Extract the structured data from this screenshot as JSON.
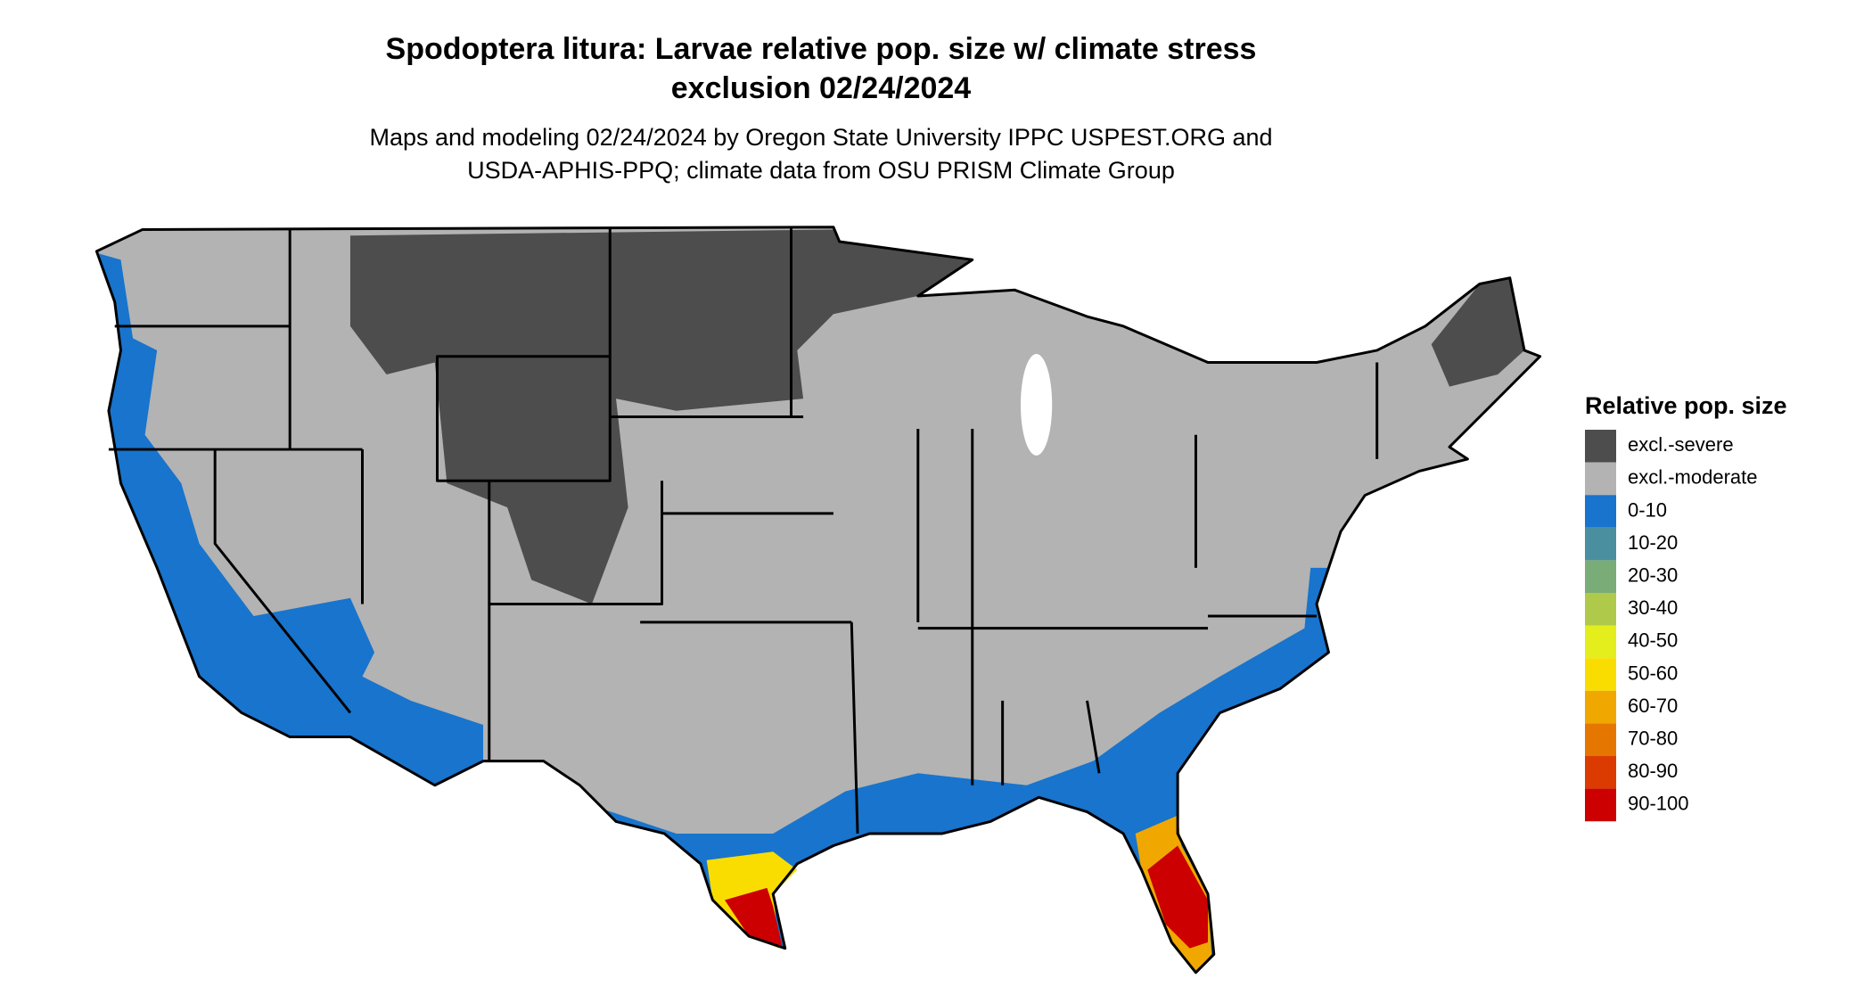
{
  "header": {
    "title_lines": [
      "Spodoptera litura: Larvae relative pop. size w/ climate stress",
      "exclusion 02/24/2024"
    ],
    "subtitle_lines": [
      "Maps and modeling 02/24/2024 by Oregon State University IPPC USPEST.ORG and",
      "USDA-APHIS-PPQ; climate data from OSU PRISM Climate Group"
    ]
  },
  "legend": {
    "title": "Relative pop. size",
    "items": [
      {
        "label": "excl.-severe",
        "color": "#4d4d4d"
      },
      {
        "label": "excl.-moderate",
        "color": "#b3b3b3"
      },
      {
        "label": "0-10",
        "color": "#1874cd"
      },
      {
        "label": "10-20",
        "color": "#4a8fa0"
      },
      {
        "label": "20-30",
        "color": "#7aac78"
      },
      {
        "label": "30-40",
        "color": "#afc94b"
      },
      {
        "label": "40-50",
        "color": "#e3ee1c"
      },
      {
        "label": "50-60",
        "color": "#f9dd00"
      },
      {
        "label": "60-70",
        "color": "#f0a800"
      },
      {
        "label": "70-80",
        "color": "#e57700"
      },
      {
        "label": "80-90",
        "color": "#db3b00"
      },
      {
        "label": "90-100",
        "color": "#cc0000"
      }
    ]
  }
}
